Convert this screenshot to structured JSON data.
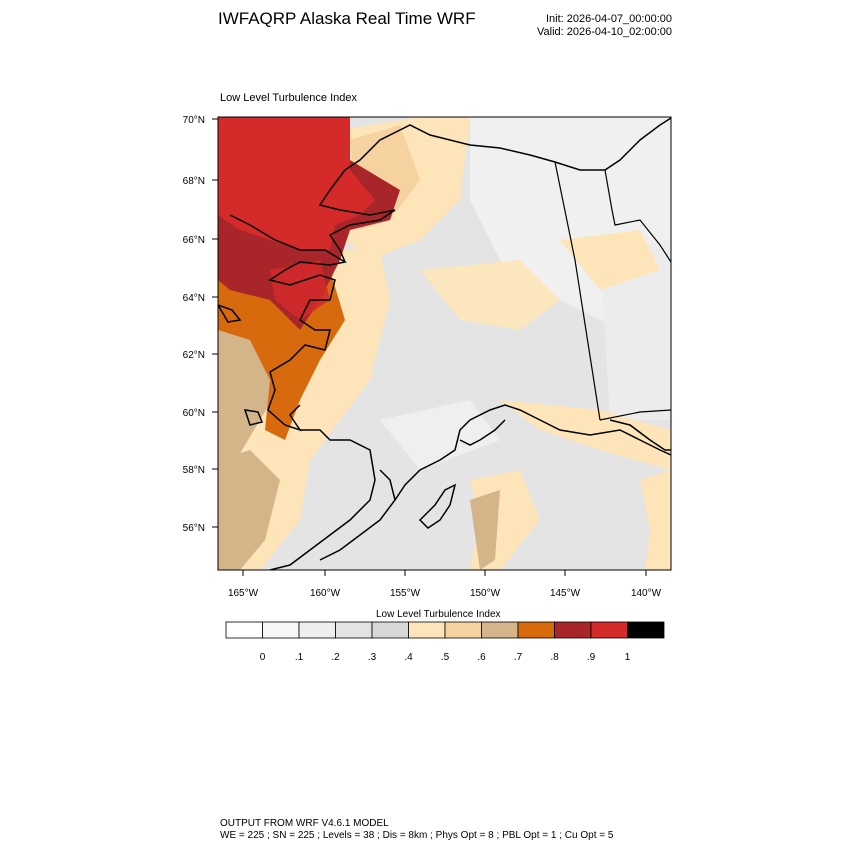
{
  "header": {
    "title": "IWFAQRP Alaska Real Time WRF",
    "init": "Init: 2026-04-07_00:00:00",
    "valid": "Valid: 2026-04-10_02:00:00"
  },
  "panel": {
    "title": "Low Level Turbulence Index"
  },
  "map": {
    "lat_labels": [
      "70°N",
      "68°N",
      "66°N",
      "64°N",
      "62°N",
      "60°N",
      "58°N",
      "56°N"
    ],
    "lon_labels": [
      "165°W",
      "160°W",
      "155°W",
      "150°W",
      "145°W",
      "140°W"
    ],
    "colors": {
      "coast": "#000000",
      "base_gray": "#e6e6e6",
      "light": "#f2f2f2",
      "tan_light": "#fde5b9",
      "tan": "#f5d2a0",
      "tan_dark": "#d4b58a",
      "orange": "#d66a0c",
      "red_dark": "#a8262a",
      "red": "#d42a2a"
    }
  },
  "colorbar": {
    "title": "Low Level Turbulence Index",
    "labels": [
      "0",
      ".1",
      ".2",
      ".3",
      ".4",
      ".5",
      ".6",
      ".7",
      ".8",
      ".9",
      "1"
    ],
    "colors": [
      "#ffffff",
      "#f7f7f7",
      "#eeeeee",
      "#e3e3e3",
      "#d7d7d7",
      "#fde5b9",
      "#f5d2a0",
      "#d4b58a",
      "#d66a0c",
      "#a8262a",
      "#d42a2a",
      "#000000"
    ]
  },
  "footer": {
    "line1": "OUTPUT FROM WRF V4.6.1 MODEL",
    "line2": "WE = 225 ; SN = 225 ; Levels = 38 ; Dis = 8km ; Phys Opt = 8 ; PBL Opt = 1 ; Cu Opt = 5"
  }
}
